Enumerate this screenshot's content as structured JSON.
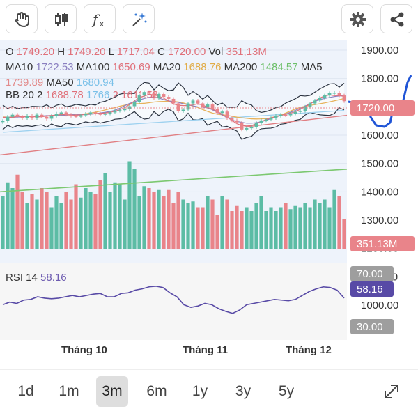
{
  "toolbar": {
    "buttons": [
      {
        "name": "hand-icon"
      },
      {
        "name": "candlestick-icon"
      },
      {
        "name": "function-icon"
      },
      {
        "name": "magic-draw-icon"
      },
      {
        "name": "settings-icon"
      },
      {
        "name": "share-icon"
      }
    ]
  },
  "legend": {
    "row1": {
      "o_label": "O",
      "o": "1749.20",
      "h_label": "H",
      "h": "1749.20",
      "l_label": "L",
      "l": "1717.04",
      "c_label": "C",
      "c": "1720.00",
      "vol_label": "Vol",
      "vol": "351,13M"
    },
    "row2": {
      "ma10_label": "MA10",
      "ma10": "1722.53",
      "ma100_label": "MA100",
      "ma100": "1650.69",
      "ma20_label": "MA20",
      "ma20": "1688.76",
      "ma200_label": "MA200",
      "ma200": "1484.57",
      "ma5_label": "MA5"
    },
    "row3": {
      "ma5": "1739.89",
      "ma50_label": "MA50",
      "ma50": "1680.94"
    },
    "row4": {
      "bb_label": "BB 20 2",
      "bb_mid": "1688.78",
      "bb_up": "1766.",
      "bb_sep": "2",
      "bb_low": "1611.53"
    }
  },
  "rsi": {
    "label": "RSI 14",
    "value": "58.16",
    "upper": "70.00",
    "lower": "30.00"
  },
  "price_axis": {
    "ticks": [
      "1900.00",
      "1800.00",
      "1700.00",
      "1600.00",
      "1500.00",
      "1400.00",
      "1300.00",
      "1200.00",
      "1100.00",
      "1000.00"
    ],
    "current_price": "1720.00",
    "volume_tag": "351.13M"
  },
  "x_axis": {
    "labels": [
      "Tháng 10",
      "Tháng 11",
      "Tháng 12"
    ]
  },
  "ranges": {
    "items": [
      "1d",
      "1m",
      "3m",
      "6m",
      "1y",
      "3y",
      "5y"
    ],
    "active": "3m"
  },
  "colors": {
    "up": "#5cbca5",
    "down": "#e9848a",
    "bb_fill": "#e6eef8",
    "bb_line": "#2b3340",
    "ma200": "#7cc870",
    "ma100": "#e07e82",
    "ma50": "#9dd1ef",
    "ma20": "#e7b25a",
    "rsi": "#584aa6",
    "drawing": "#1f54d6",
    "current": "#e9848a"
  },
  "chart_data": {
    "type": "candlestick",
    "x": [
      0,
      1,
      2,
      3,
      4,
      5,
      6,
      7,
      8,
      9,
      10,
      11,
      12,
      13,
      14,
      15,
      16,
      17,
      18,
      19,
      20,
      21,
      22,
      23,
      24,
      25,
      26,
      27,
      28,
      29,
      30,
      31,
      32,
      33,
      34,
      35,
      36,
      37,
      38,
      39,
      40,
      41,
      42,
      43,
      44,
      45,
      46,
      47,
      48,
      49,
      50,
      51,
      52,
      53,
      54,
      55,
      56,
      57,
      58,
      59,
      60,
      61,
      62,
      63,
      64,
      65,
      66,
      67,
      68,
      69,
      70
    ],
    "close": [
      1650,
      1665,
      1672,
      1665,
      1660,
      1668,
      1660,
      1672,
      1665,
      1658,
      1668,
      1676,
      1680,
      1672,
      1668,
      1665,
      1670,
      1675,
      1680,
      1676,
      1672,
      1676,
      1680,
      1686,
      1688,
      1692,
      1702,
      1718,
      1740,
      1752,
      1750,
      1730,
      1745,
      1735,
      1728,
      1712,
      1685,
      1690,
      1712,
      1722,
      1712,
      1698,
      1708,
      1692,
      1678,
      1683,
      1660,
      1652,
      1645,
      1620,
      1625,
      1628,
      1643,
      1652,
      1655,
      1660,
      1668,
      1672,
      1670,
      1676,
      1682,
      1686,
      1700,
      1712,
      1722,
      1732,
      1740,
      1748,
      1750,
      1740,
      1720
    ],
    "volume": [
      140,
      175,
      160,
      195,
      150,
      120,
      145,
      130,
      160,
      150,
      110,
      140,
      120,
      150,
      130,
      170,
      135,
      160,
      150,
      145,
      180,
      200,
      150,
      175,
      170,
      130,
      230,
      210,
      140,
      165,
      160,
      150,
      155,
      140,
      155,
      120,
      150,
      130,
      120,
      125,
      110,
      110,
      140,
      130,
      90,
      140,
      130,
      100,
      115,
      100,
      110,
      100,
      120,
      140,
      100,
      110,
      100,
      110,
      120,
      105,
      115,
      110,
      120,
      110,
      130,
      120,
      130,
      110,
      155,
      140,
      80
    ],
    "rsi": [
      48,
      52,
      50,
      55,
      56,
      60,
      58,
      57,
      58,
      60,
      62,
      60,
      62,
      64,
      65,
      60,
      60,
      65,
      66,
      70,
      72,
      75,
      76,
      74,
      66,
      60,
      48,
      44,
      46,
      50,
      48,
      42,
      38,
      35,
      40,
      48,
      50,
      52,
      54,
      56,
      55,
      54,
      56,
      62,
      68,
      72,
      75,
      74,
      70,
      58
    ],
    "ma200": [
      1400,
      1480
    ],
    "ma100": [
      1530,
      1670
    ],
    "drawing": "hand-drawn blue annotation line on the right",
    "ylim": [
      1000,
      1900
    ],
    "title": "",
    "xlabel": "",
    "ylabel": ""
  }
}
